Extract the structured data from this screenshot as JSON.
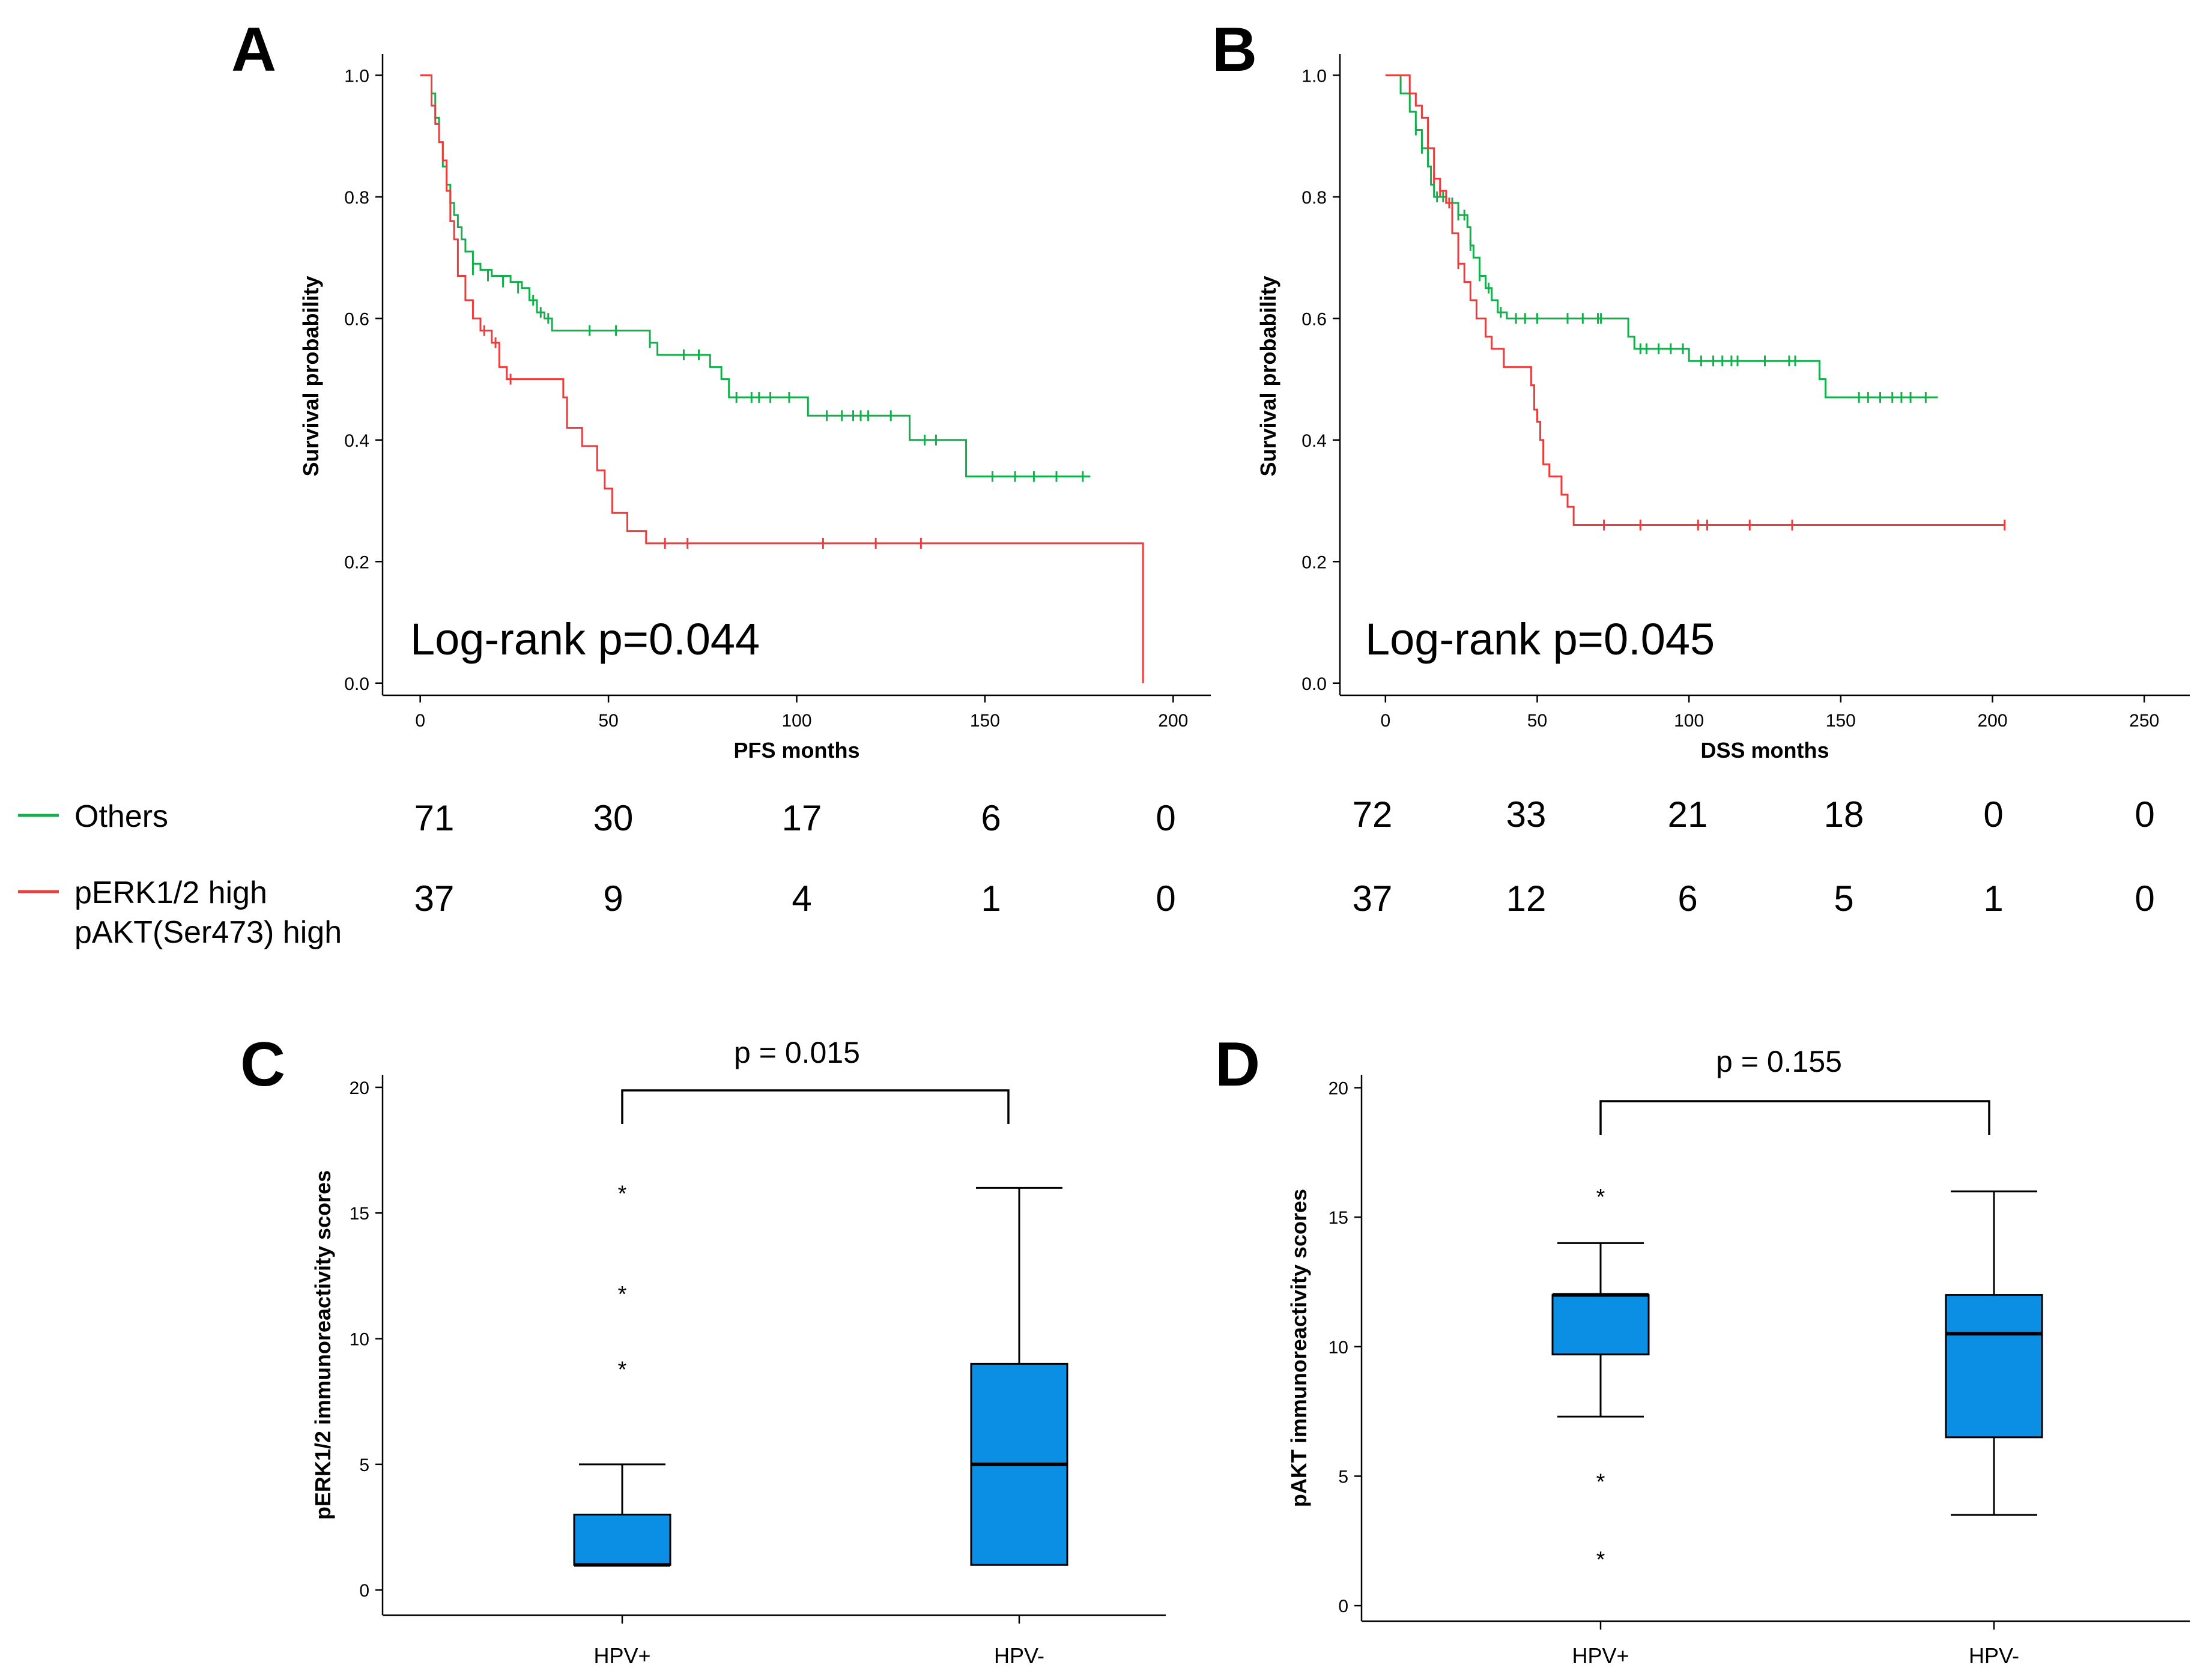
{
  "colors": {
    "others": "#11b04a",
    "high": "#ee3b3b",
    "box": "#0a8fe5",
    "axis": "#000000"
  },
  "legend": {
    "others_label": "Others",
    "high_label_line1": "pERK1/2 high",
    "high_label_line2": "pAKT(Ser473) high"
  },
  "chart_data": [
    {
      "panel": "A",
      "type": "line",
      "subtype": "kaplan-meier",
      "xlabel": "PFS months",
      "ylabel": "Survival probability",
      "xlim": [
        -10,
        210
      ],
      "ylim": [
        -0.02,
        1.03
      ],
      "xticks": [
        0,
        50,
        100,
        150,
        200
      ],
      "yticks": [
        0.0,
        0.2,
        0.4,
        0.6,
        0.8,
        1.0
      ],
      "xtick_labels": [
        "0",
        "50",
        "100",
        "150",
        "200"
      ],
      "ytick_labels": [
        "0.0",
        "0.2",
        "0.4",
        "0.6",
        "0.8",
        "1.0"
      ],
      "annotation": "Log-rank p=0.044",
      "series": [
        {
          "name": "Others",
          "color_key": "others",
          "steps": [
            [
              0,
              1.0
            ],
            [
              3,
              0.97
            ],
            [
              4,
              0.93
            ],
            [
              5,
              0.89
            ],
            [
              6,
              0.85
            ],
            [
              7,
              0.82
            ],
            [
              8,
              0.79
            ],
            [
              9,
              0.77
            ],
            [
              10,
              0.75
            ],
            [
              11,
              0.73
            ],
            [
              12,
              0.71
            ],
            [
              14,
              0.69
            ],
            [
              16,
              0.68
            ],
            [
              19,
              0.67
            ],
            [
              24,
              0.66
            ],
            [
              27,
              0.65
            ],
            [
              29,
              0.63
            ],
            [
              31,
              0.61
            ],
            [
              33,
              0.6
            ],
            [
              35,
              0.58
            ],
            [
              61,
              0.56
            ],
            [
              63,
              0.54
            ],
            [
              77,
              0.52
            ],
            [
              80,
              0.5
            ],
            [
              82,
              0.47
            ],
            [
              102,
              0.47
            ],
            [
              103,
              0.44
            ],
            [
              128,
              0.44
            ],
            [
              130,
              0.4
            ],
            [
              140,
              0.4
            ],
            [
              145,
              0.34
            ],
            [
              178,
              0.34
            ]
          ],
          "censors": [
            [
              14,
              0.68
            ],
            [
              18,
              0.67
            ],
            [
              22,
              0.66
            ],
            [
              26,
              0.65
            ],
            [
              30,
              0.63
            ],
            [
              32,
              0.61
            ],
            [
              34,
              0.6
            ],
            [
              45,
              0.58
            ],
            [
              52,
              0.58
            ],
            [
              61,
              0.56
            ],
            [
              70,
              0.54
            ],
            [
              74,
              0.54
            ],
            [
              84,
              0.47
            ],
            [
              88,
              0.47
            ],
            [
              90,
              0.47
            ],
            [
              93,
              0.47
            ],
            [
              98,
              0.47
            ],
            [
              108,
              0.44
            ],
            [
              112,
              0.44
            ],
            [
              115,
              0.44
            ],
            [
              117,
              0.44
            ],
            [
              119,
              0.44
            ],
            [
              125,
              0.44
            ],
            [
              134,
              0.4
            ],
            [
              137,
              0.4
            ],
            [
              152,
              0.34
            ],
            [
              158,
              0.34
            ],
            [
              163,
              0.34
            ],
            [
              169,
              0.34
            ],
            [
              176,
              0.34
            ]
          ]
        },
        {
          "name": "pERK1/2 high pAKT(Ser473) high",
          "color_key": "high",
          "steps": [
            [
              0,
              1.0
            ],
            [
              3,
              0.95
            ],
            [
              4,
              0.92
            ],
            [
              5,
              0.89
            ],
            [
              6,
              0.86
            ],
            [
              7,
              0.81
            ],
            [
              8,
              0.76
            ],
            [
              9,
              0.73
            ],
            [
              10,
              0.67
            ],
            [
              12,
              0.63
            ],
            [
              14,
              0.6
            ],
            [
              16,
              0.58
            ],
            [
              19,
              0.56
            ],
            [
              21,
              0.52
            ],
            [
              23,
              0.5
            ],
            [
              38,
              0.47
            ],
            [
              39,
              0.42
            ],
            [
              43,
              0.39
            ],
            [
              47,
              0.35
            ],
            [
              49,
              0.32
            ],
            [
              51,
              0.28
            ],
            [
              55,
              0.25
            ],
            [
              60,
              0.23
            ],
            [
              72,
              0.23
            ],
            [
              191,
              0.23
            ],
            [
              192,
              0.0
            ]
          ],
          "censors": [
            [
              17,
              0.58
            ],
            [
              20,
              0.56
            ],
            [
              24,
              0.5
            ],
            [
              65,
              0.23
            ],
            [
              71,
              0.23
            ],
            [
              107,
              0.23
            ],
            [
              121,
              0.23
            ],
            [
              133,
              0.23
            ]
          ]
        }
      ],
      "risk_table": {
        "times": [
          0,
          50,
          100,
          150,
          200
        ],
        "Others": [
          "71",
          "30",
          "17",
          "6",
          "0"
        ],
        "high": [
          "37",
          "9",
          "4",
          "1",
          "0"
        ]
      }
    },
    {
      "panel": "B",
      "type": "line",
      "subtype": "kaplan-meier",
      "xlabel": "DSS months",
      "ylabel": "Survival probability",
      "xlim": [
        -15,
        265
      ],
      "ylim": [
        -0.02,
        1.03
      ],
      "xticks": [
        0,
        50,
        100,
        150,
        200,
        250
      ],
      "yticks": [
        0.0,
        0.2,
        0.4,
        0.6,
        0.8,
        1.0
      ],
      "xtick_labels": [
        "0",
        "50",
        "100",
        "150",
        "200",
        "250"
      ],
      "ytick_labels": [
        "0.0",
        "0.2",
        "0.4",
        "0.6",
        "0.8",
        "1.0"
      ],
      "annotation": "Log-rank p=0.045",
      "series": [
        {
          "name": "Others",
          "color_key": "others",
          "steps": [
            [
              0,
              1.0
            ],
            [
              5,
              0.97
            ],
            [
              8,
              0.94
            ],
            [
              10,
              0.91
            ],
            [
              12,
              0.88
            ],
            [
              14,
              0.85
            ],
            [
              15,
              0.82
            ],
            [
              16,
              0.8
            ],
            [
              20,
              0.79
            ],
            [
              24,
              0.77
            ],
            [
              27,
              0.75
            ],
            [
              28,
              0.72
            ],
            [
              29,
              0.7
            ],
            [
              31,
              0.67
            ],
            [
              33,
              0.65
            ],
            [
              35,
              0.63
            ],
            [
              37,
              0.61
            ],
            [
              40,
              0.6
            ],
            [
              78,
              0.6
            ],
            [
              80,
              0.57
            ],
            [
              82,
              0.55
            ],
            [
              95,
              0.55
            ],
            [
              100,
              0.53
            ],
            [
              143,
              0.5
            ],
            [
              145,
              0.47
            ],
            [
              182,
              0.47
            ]
          ],
          "censors": [
            [
              10,
              0.91
            ],
            [
              12,
              0.88
            ],
            [
              17,
              0.8
            ],
            [
              19,
              0.8
            ],
            [
              22,
              0.79
            ],
            [
              24,
              0.77
            ],
            [
              26,
              0.77
            ],
            [
              28,
              0.72
            ],
            [
              31,
              0.67
            ],
            [
              34,
              0.65
            ],
            [
              38,
              0.61
            ],
            [
              43,
              0.6
            ],
            [
              46,
              0.6
            ],
            [
              50,
              0.6
            ],
            [
              60,
              0.6
            ],
            [
              65,
              0.6
            ],
            [
              70,
              0.6
            ],
            [
              71,
              0.6
            ],
            [
              84,
              0.55
            ],
            [
              86,
              0.55
            ],
            [
              90,
              0.55
            ],
            [
              94,
              0.55
            ],
            [
              98,
              0.55
            ],
            [
              104,
              0.53
            ],
            [
              108,
              0.53
            ],
            [
              111,
              0.53
            ],
            [
              114,
              0.53
            ],
            [
              116,
              0.53
            ],
            [
              125,
              0.53
            ],
            [
              133,
              0.53
            ],
            [
              135,
              0.53
            ],
            [
              156,
              0.47
            ],
            [
              159,
              0.47
            ],
            [
              163,
              0.47
            ],
            [
              167,
              0.47
            ],
            [
              170,
              0.47
            ],
            [
              173,
              0.47
            ],
            [
              178,
              0.47
            ]
          ]
        },
        {
          "name": "pERK1/2 high pAKT(Ser473) high",
          "color_key": "high",
          "steps": [
            [
              0,
              1.0
            ],
            [
              8,
              0.97
            ],
            [
              10,
              0.95
            ],
            [
              12,
              0.93
            ],
            [
              14,
              0.88
            ],
            [
              16,
              0.83
            ],
            [
              18,
              0.81
            ],
            [
              20,
              0.79
            ],
            [
              22,
              0.74
            ],
            [
              24,
              0.69
            ],
            [
              26,
              0.66
            ],
            [
              28,
              0.63
            ],
            [
              30,
              0.6
            ],
            [
              33,
              0.57
            ],
            [
              35,
              0.55
            ],
            [
              39,
              0.52
            ],
            [
              48,
              0.49
            ],
            [
              49,
              0.45
            ],
            [
              50,
              0.43
            ],
            [
              51,
              0.4
            ],
            [
              52,
              0.36
            ],
            [
              54,
              0.34
            ],
            [
              58,
              0.31
            ],
            [
              60,
              0.29
            ],
            [
              62,
              0.26
            ],
            [
              204,
              0.26
            ]
          ],
          "censors": [
            [
              16,
              0.83
            ],
            [
              18,
              0.81
            ],
            [
              21,
              0.79
            ],
            [
              24,
              0.69
            ],
            [
              72,
              0.26
            ],
            [
              84,
              0.26
            ],
            [
              103,
              0.26
            ],
            [
              106,
              0.26
            ],
            [
              120,
              0.26
            ],
            [
              134,
              0.26
            ],
            [
              204,
              0.26
            ]
          ]
        }
      ],
      "risk_table": {
        "times": [
          0,
          50,
          100,
          150,
          200,
          250
        ],
        "Others": [
          "72",
          "33",
          "21",
          "18",
          "0",
          "0"
        ],
        "high": [
          "37",
          "12",
          "6",
          "5",
          "1",
          "0"
        ]
      }
    },
    {
      "panel": "C",
      "type": "box",
      "ylabel": "pERK1/2 immunoreactivity scores",
      "ylim": [
        -1.0,
        20.5
      ],
      "yticks": [
        0,
        5,
        10,
        15,
        20
      ],
      "ytick_labels": [
        "0",
        "5",
        "10",
        "15",
        "20"
      ],
      "categories": [
        "HPV+",
        "HPV-"
      ],
      "boxes": [
        {
          "min": 1,
          "q1": 1,
          "median": 1,
          "q3": 3,
          "max": 5,
          "outliers": [
            9,
            12,
            16
          ]
        },
        {
          "min": 1,
          "q1": 1,
          "median": 5,
          "q3": 9,
          "max": 16,
          "outliers": []
        }
      ],
      "bracket_label": "p = 0.015"
    },
    {
      "panel": "D",
      "type": "box",
      "ylabel": "pAKT immunoreactivity scores",
      "ylim": [
        -0.6,
        20.5
      ],
      "yticks": [
        0,
        5,
        10,
        15,
        20
      ],
      "ytick_labels": [
        "0",
        "5",
        "10",
        "15",
        "20"
      ],
      "categories": [
        "HPV+",
        "HPV-"
      ],
      "boxes": [
        {
          "min": 7.3,
          "q1": 9.7,
          "median": 12,
          "q3": 12,
          "max": 14,
          "outliers": [
            2,
            5,
            16
          ]
        },
        {
          "min": 3.5,
          "q1": 6.5,
          "median": 10.5,
          "q3": 12,
          "max": 16,
          "outliers": []
        }
      ],
      "bracket_label": "p = 0.155"
    }
  ]
}
